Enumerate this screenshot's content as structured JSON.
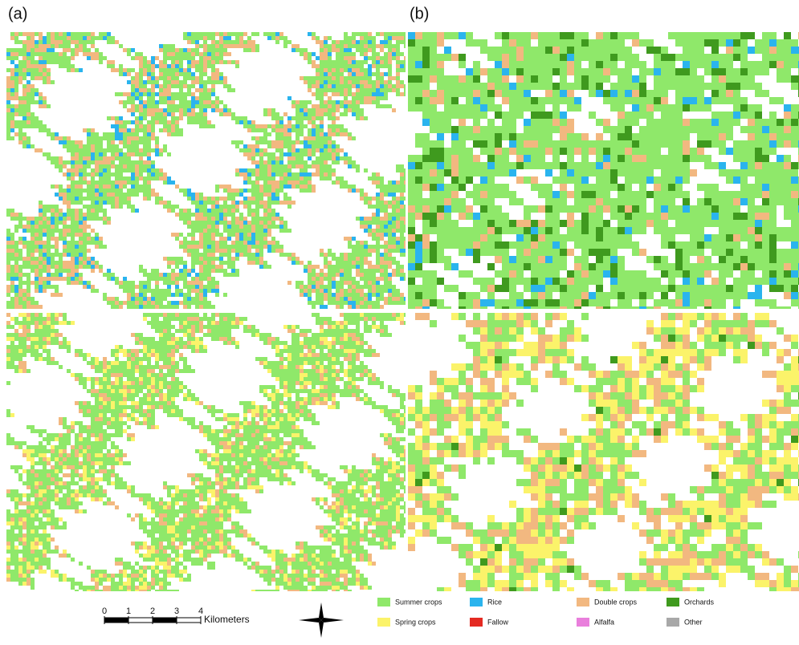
{
  "panels": [
    {
      "label": "(a)"
    },
    {
      "label": "(b)"
    }
  ],
  "scale_bar": {
    "ticks": [
      0,
      1,
      2,
      3,
      4
    ],
    "unit": "Kilometers"
  },
  "legend": [
    {
      "name": "Summer crops",
      "color": "#8fe86a"
    },
    {
      "name": "Rice",
      "color": "#2ab4ee"
    },
    {
      "name": "Double crops",
      "color": "#f2b880"
    },
    {
      "name": "Orchards",
      "color": "#3f9a1e"
    },
    {
      "name": "Spring crops",
      "color": "#fbf36a"
    },
    {
      "name": "Fallow",
      "color": "#e42a22"
    },
    {
      "name": "Alfalfa",
      "color": "#e97fdc"
    },
    {
      "name": "Other",
      "color": "#a8a8a8"
    }
  ]
}
